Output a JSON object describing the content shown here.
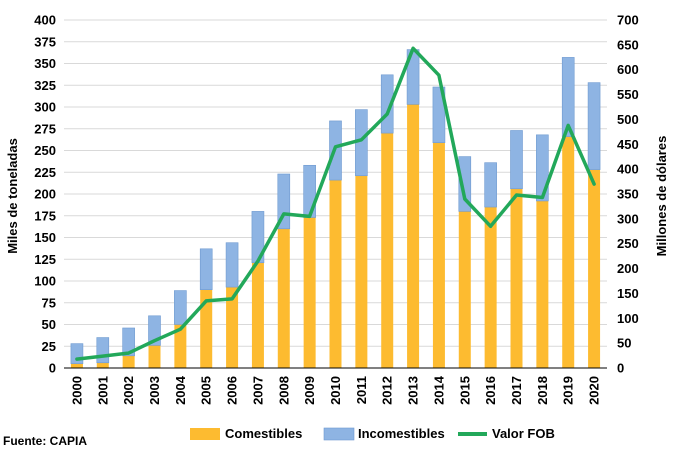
{
  "chart_data": {
    "type": "bar",
    "stacked": true,
    "title": "",
    "xlabel": "",
    "ylabel": "Miles de toneladas",
    "y2label": "Millones de dólares",
    "ylim": [
      0,
      400
    ],
    "y2lim": [
      0,
      700
    ],
    "yticks": [
      "0",
      "25",
      "50",
      "75",
      "100",
      "125",
      "150",
      "175",
      "200",
      "225",
      "250",
      "275",
      "300",
      "325",
      "350",
      "375",
      "400"
    ],
    "y2ticks": [
      "0",
      "50",
      "100",
      "150",
      "200",
      "250",
      "300",
      "350",
      "400",
      "450",
      "500",
      "550",
      "600",
      "650",
      "700"
    ],
    "grid": true,
    "categories": [
      "2000",
      "2001",
      "2002",
      "2003",
      "2004",
      "2005",
      "2006",
      "2007",
      "2008",
      "2009",
      "2010",
      "2011",
      "2012",
      "2013",
      "2014",
      "2015",
      "2016",
      "2017",
      "2018",
      "2019",
      "2020"
    ],
    "series": [
      {
        "name": "Comestibles",
        "kind": "bar",
        "axis": "left",
        "color": "#FDBB30",
        "values": [
          5,
          6,
          14,
          26,
          50,
          90,
          93,
          121,
          160,
          173,
          216,
          221,
          270,
          303,
          259,
          180,
          185,
          206,
          192,
          266,
          228
        ]
      },
      {
        "name": "Incomestibles",
        "kind": "bar",
        "axis": "left",
        "color": "#8EB4E3",
        "values": [
          23,
          29,
          32,
          34,
          39,
          47,
          51,
          59,
          63,
          60,
          68,
          76,
          67,
          63,
          64,
          63,
          51,
          67,
          76,
          91,
          100
        ]
      },
      {
        "name": "Valor FOB",
        "kind": "line",
        "axis": "right",
        "color": "#22A85A",
        "values": [
          18,
          24,
          30,
          55,
          78,
          135,
          139,
          215,
          310,
          305,
          445,
          459,
          511,
          643,
          589,
          340,
          285,
          348,
          343,
          488,
          370
        ]
      }
    ],
    "legend_position": "bottom",
    "source": "Fuente: CAPIA"
  }
}
